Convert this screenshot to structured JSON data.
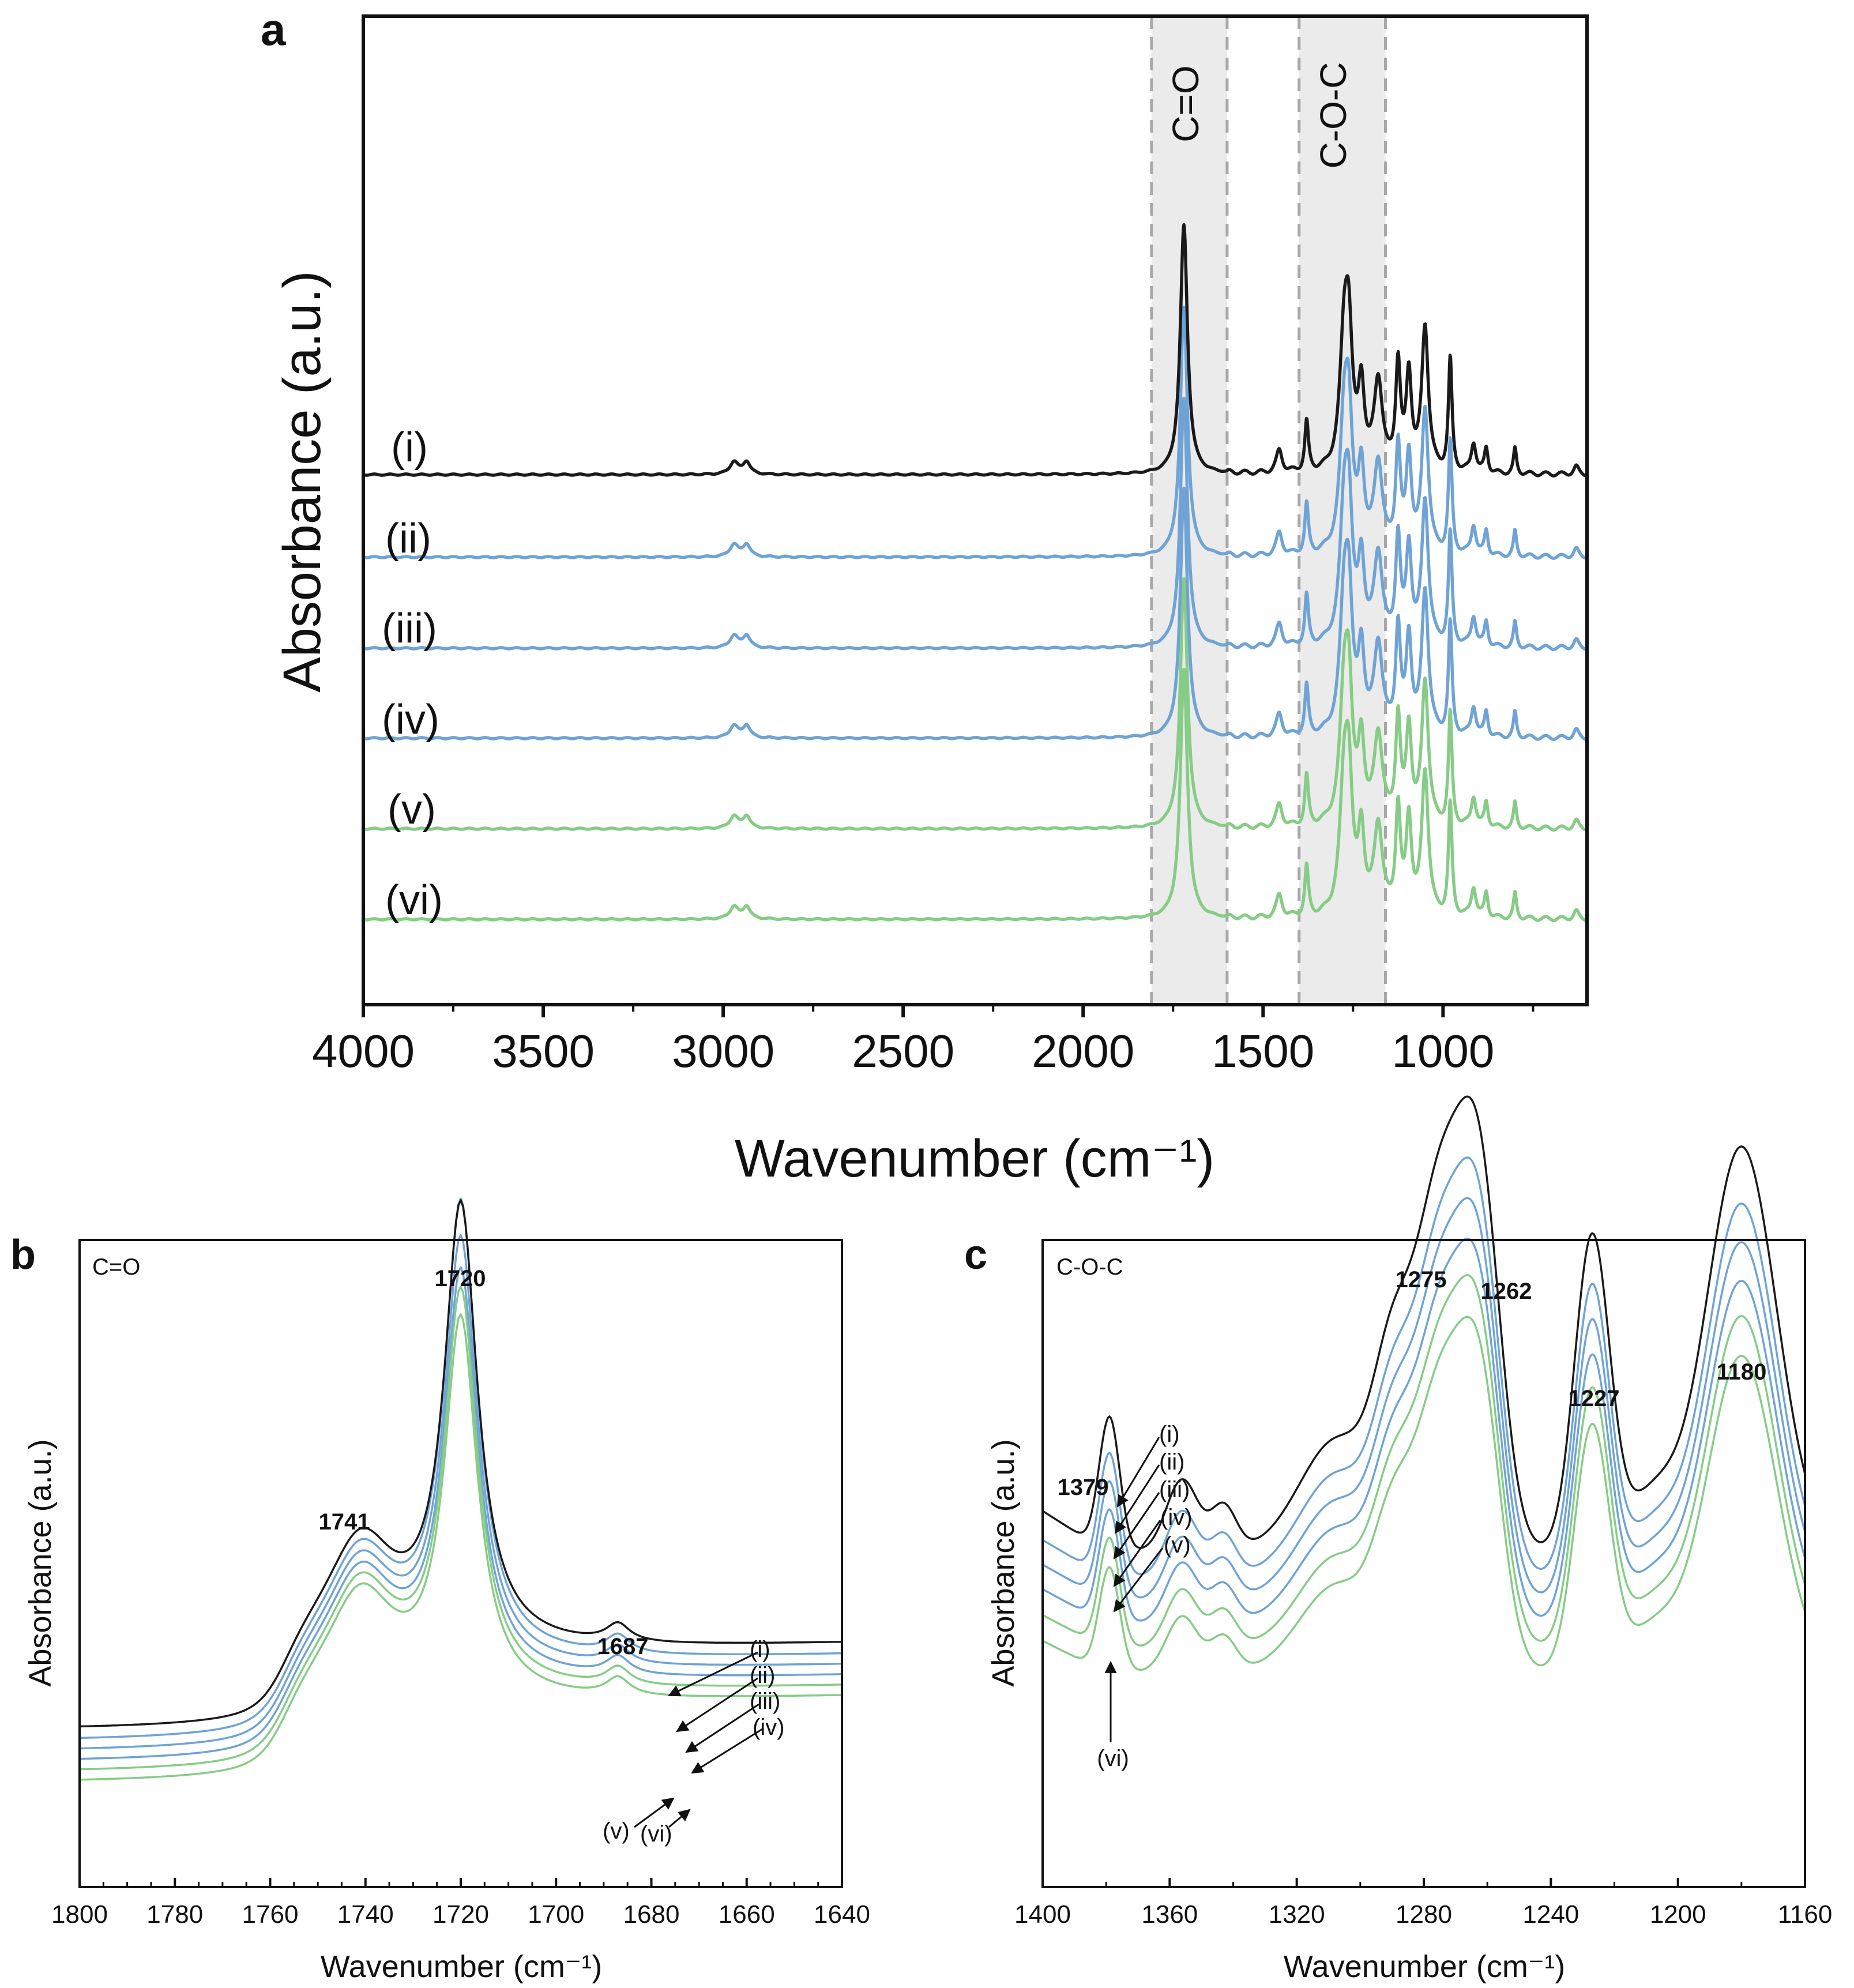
{
  "colors": {
    "black": "#1a1a1a",
    "blue": "#6fa3d6",
    "green": "#86cc86",
    "shade": "#ebebeb",
    "dash": "#a8a8a8"
  },
  "chart_data": [
    {
      "panel": "a",
      "type": "line",
      "title": "",
      "xlabel": "Wavenumber (cm⁻¹)",
      "ylabel": "Absorbance (a.u.)",
      "xlim": [
        4000,
        600
      ],
      "x_ticks": [
        "4000",
        "3500",
        "3000",
        "2500",
        "2000",
        "1500",
        "1000"
      ],
      "regions": [
        {
          "label": "C=O",
          "range": [
            1810,
            1600
          ]
        },
        {
          "label": "C-O-C",
          "range": [
            1400,
            1160
          ]
        }
      ],
      "series": [
        {
          "name": "(i)",
          "color": "black",
          "offset": 5
        },
        {
          "name": "(ii)",
          "color": "blue",
          "offset": 4
        },
        {
          "name": "(iii)",
          "color": "blue",
          "offset": 3
        },
        {
          "name": "(iv)",
          "color": "blue",
          "offset": 2
        },
        {
          "name": "(v)",
          "color": "green",
          "offset": 1
        },
        {
          "name": "(vi)",
          "color": "green",
          "offset": 0
        }
      ],
      "peaks": [
        {
          "x": 2970,
          "h": 0.05,
          "w": 14
        },
        {
          "x": 2935,
          "h": 0.05,
          "w": 12
        },
        {
          "x": 1720,
          "h": 1.0,
          "w": 12
        },
        {
          "x": 1455,
          "h": 0.09,
          "w": 10
        },
        {
          "x": 1379,
          "h": 0.2,
          "w": 6
        },
        {
          "x": 1275,
          "h": 0.48,
          "w": 14
        },
        {
          "x": 1262,
          "h": 0.48,
          "w": 12
        },
        {
          "x": 1227,
          "h": 0.32,
          "w": 10
        },
        {
          "x": 1180,
          "h": 0.36,
          "w": 14
        },
        {
          "x": 1125,
          "h": 0.42,
          "w": 8
        },
        {
          "x": 1095,
          "h": 0.38,
          "w": 9
        },
        {
          "x": 1050,
          "h": 0.58,
          "w": 11
        },
        {
          "x": 980,
          "h": 0.45,
          "w": 6
        },
        {
          "x": 915,
          "h": 0.12,
          "w": 8
        },
        {
          "x": 880,
          "h": 0.1,
          "w": 6
        },
        {
          "x": 800,
          "h": 0.1,
          "w": 5
        },
        {
          "x": 630,
          "h": 0.03,
          "w": 8
        }
      ]
    },
    {
      "panel": "b",
      "type": "line",
      "inner_label": "C=O",
      "xlabel": "Wavenumber (cm⁻¹)",
      "ylabel": "Absorbance (a.u.)",
      "xlim": [
        1800,
        1640
      ],
      "x_ticks": [
        "1800",
        "1780",
        "1760",
        "1740",
        "1720",
        "1700",
        "1680",
        "1660",
        "1640"
      ],
      "annotations": [
        "1741",
        "1720",
        "1687"
      ],
      "series": [
        {
          "name": "(i)",
          "color": "black",
          "peak_1720": 1.0
        },
        {
          "name": "(ii)",
          "color": "blue",
          "peak_1720": 1.03
        },
        {
          "name": "(iii)",
          "color": "blue",
          "peak_1720": 0.97
        },
        {
          "name": "(iv)",
          "color": "blue",
          "peak_1720": 0.92
        },
        {
          "name": "(v)",
          "color": "green",
          "peak_1720": 0.9
        },
        {
          "name": "(vi)",
          "color": "green",
          "peak_1720": 0.86
        }
      ]
    },
    {
      "panel": "c",
      "type": "line",
      "inner_label": "C-O-C",
      "xlabel": "Wavenumber (cm⁻¹)",
      "ylabel": "Absorbance (a.u.)",
      "xlim": [
        1400,
        1160
      ],
      "x_ticks": [
        "1400",
        "1360",
        "1320",
        "1280",
        "1240",
        "1200",
        "1160"
      ],
      "annotations": [
        "1379",
        "1275",
        "1262",
        "1227",
        "1180"
      ],
      "series": [
        {
          "name": "(i)",
          "color": "black"
        },
        {
          "name": "(ii)",
          "color": "blue"
        },
        {
          "name": "(iii)",
          "color": "blue"
        },
        {
          "name": "(iv)",
          "color": "blue"
        },
        {
          "name": "(v)",
          "color": "green"
        },
        {
          "name": "(vi)",
          "color": "green"
        }
      ]
    }
  ],
  "labels": {
    "panel_a": "a",
    "panel_b": "b",
    "panel_c": "c",
    "b_arrows_top": [
      "(i)",
      "(ii)",
      "(iii)",
      "(iv)"
    ],
    "b_arrows_bottom": [
      "(v)",
      "(vi)"
    ],
    "c_arrows_top": [
      "(i)",
      "(ii)",
      "(iii)",
      "(iv)",
      "(v)"
    ],
    "c_arrow_bottom": "(vi)"
  }
}
